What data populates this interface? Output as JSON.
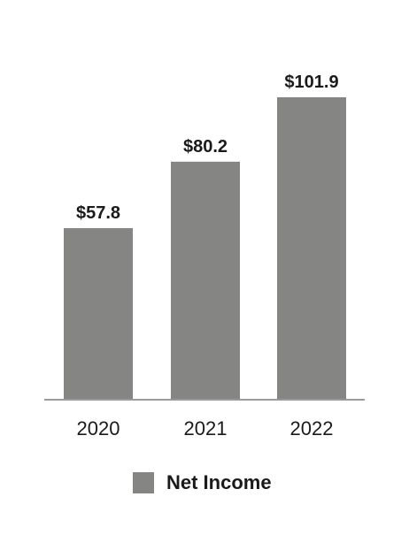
{
  "chart_data": {
    "type": "bar",
    "categories": [
      "2020",
      "2021",
      "2022"
    ],
    "series": [
      {
        "name": "Net Income",
        "values": [
          57.8,
          80.2,
          101.9
        ],
        "color": "#858684"
      }
    ],
    "data_labels": [
      "$57.8",
      "$80.2",
      "$101.9"
    ],
    "ylim": [
      0,
      101.9
    ],
    "grid": false,
    "legend_position": "bottom"
  },
  "legend": {
    "label": "Net Income",
    "swatch_color": "#858684"
  },
  "colors": {
    "bar": "#858684",
    "axis": "#9a9a9a",
    "text": "#1a1a1a"
  }
}
